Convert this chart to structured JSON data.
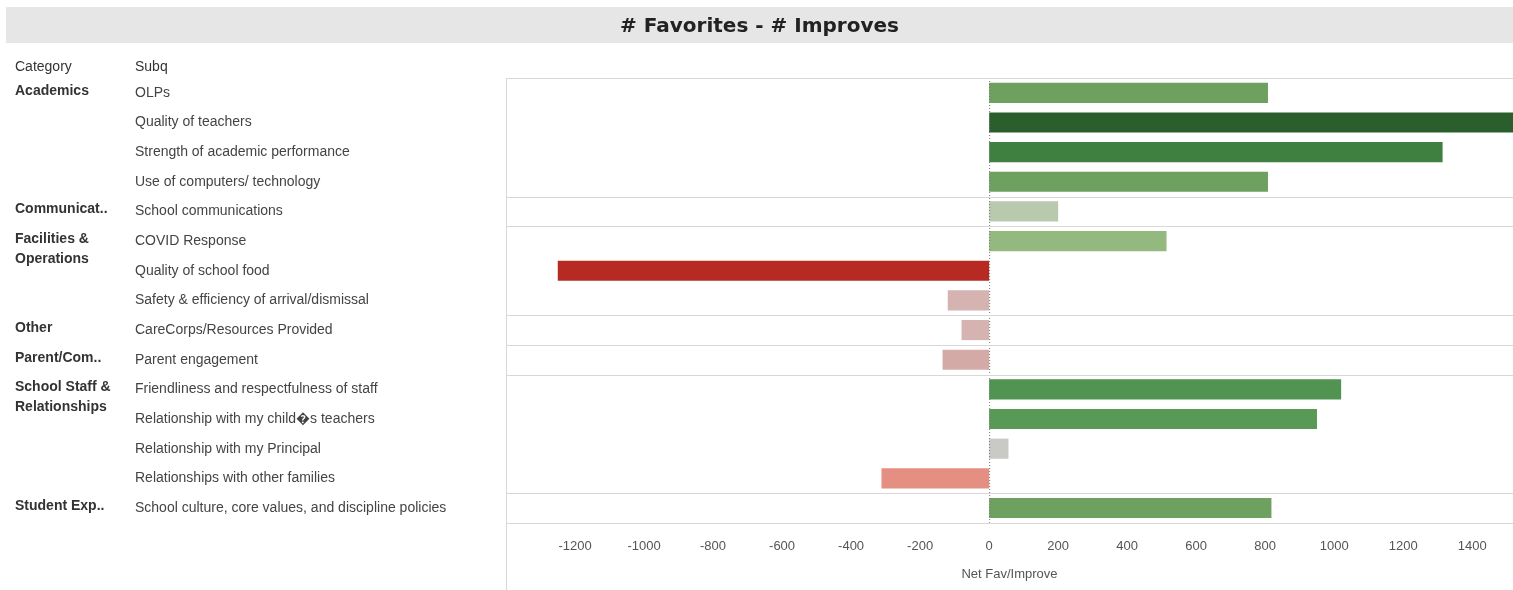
{
  "chart_data": {
    "type": "bar",
    "orientation": "horizontal",
    "title": "# Favorites - # Improves",
    "xlabel": "Net Fav/Improve",
    "ylabel": "Subq",
    "categories": [
      "OLPs",
      "Quality of teachers",
      "Strength of academic performance",
      "Use of computers/ technology",
      "School communications",
      "COVID Response",
      "Quality of school food",
      "Safety & efficiency of arrival/dismissal",
      "CareCorps/Resources Provided",
      "Parent engagement",
      "Friendliness and respectfulness of staff",
      "Relationship with my child�s teachers",
      "Relationship with my Principal",
      "Relationships with other families",
      "School culture, core values, and discipline policies"
    ],
    "values": [
      808,
      1518,
      1314,
      808,
      200,
      514,
      -1250,
      -120,
      -80,
      -135,
      1020,
      950,
      56,
      -312,
      818
    ],
    "colors": [
      "#6ea05f",
      "#2a5e2c",
      "#3f7f40",
      "#6ea05f",
      "#b9c9ae",
      "#93b97f",
      "#b72a24",
      "#d4b3b1",
      "#d4b3b1",
      "#d4aaa6",
      "#519350",
      "#589a55",
      "#c9c9c5",
      "#e58f82",
      "#6ea05f"
    ],
    "xlim": [
      -1400,
      1518
    ],
    "xticks": [
      -1200,
      -1000,
      -800,
      -600,
      -400,
      -200,
      0,
      200,
      400,
      600,
      800,
      1000,
      1200,
      1400
    ],
    "annotations": [
      "Category",
      "Academics",
      "Communicat..",
      "Facilities & Operations",
      "Other",
      "Parent/Com..",
      "School Staff & Relationships",
      "Student Exp.."
    ],
    "ref_lines": [
      {
        "axis": "x",
        "value": 0,
        "color": "#777777",
        "line_style": "dotted"
      }
    ],
    "grid": false,
    "legend": false
  }
}
